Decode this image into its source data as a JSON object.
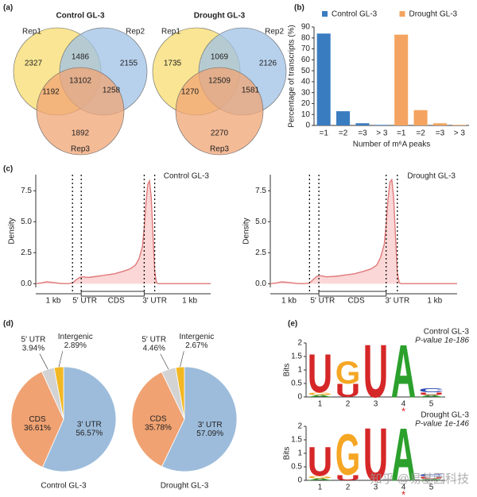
{
  "panels": [
    "(a)",
    "(b)",
    "(c)",
    "(d)",
    "(e)"
  ],
  "watermark": "知乎 @易基因科技",
  "chart_data": [
    {
      "type": "venn",
      "title": "Control GL-3",
      "sets": [
        "Rep1",
        "Rep2",
        "Rep3"
      ],
      "colors": [
        "#f7dc6f",
        "#9fc1e6",
        "#f0a474"
      ],
      "values": [
        2327,
        2155,
        1892,
        1486,
        1192,
        1258,
        13102
      ]
    },
    {
      "type": "venn",
      "title": "Drought GL-3",
      "sets": [
        "Rep1",
        "Rep2",
        "Rep3"
      ],
      "colors": [
        "#f7dc6f",
        "#9fc1e6",
        "#f0a474"
      ],
      "values": [
        1735,
        2126,
        2270,
        1069,
        1270,
        1581,
        12509
      ]
    },
    {
      "type": "bar",
      "categories": [
        "=1",
        "=2",
        "=3",
        "> 3"
      ],
      "x_label": "Number of m⁶A peaks",
      "y_label": "Percentage of transcripts (%)",
      "series": [
        {
          "name": "Control GL-3",
          "color": "#3a7cc0",
          "values": [
            84,
            13,
            2,
            0.5
          ]
        },
        {
          "name": "Drought GL-3",
          "color": "#f4a460",
          "values": [
            83,
            14,
            2,
            0.5
          ]
        }
      ],
      "ylim": [
        0,
        90
      ],
      "yticks": [
        0,
        10,
        20,
        30,
        40,
        50,
        60,
        70,
        80,
        90
      ],
      "legend": "top"
    },
    {
      "type": "line",
      "title": "Control GL-3",
      "y_label": "Density",
      "color": "#e07a7a",
      "fill": "#fbd7d7",
      "regions": [
        "1 kb",
        "5′ UTR",
        "CDS",
        "3′ UTR",
        "1 kb"
      ],
      "vlines": [
        21,
        26,
        62,
        68
      ],
      "x": [
        0,
        3,
        6,
        10,
        14,
        18,
        21,
        23,
        25,
        27,
        30,
        35,
        40,
        45,
        50,
        54,
        57,
        59,
        61,
        62,
        63,
        64,
        65,
        66,
        67,
        68,
        69,
        70,
        75,
        80,
        90,
        100
      ],
      "values": [
        0,
        0.05,
        0.15,
        0.1,
        0.02,
        0,
        0.05,
        0.3,
        0.5,
        0.55,
        0.5,
        0.6,
        0.7,
        0.8,
        1.0,
        1.2,
        1.5,
        2.0,
        3.0,
        4.5,
        6.5,
        8.0,
        8.3,
        7.0,
        4.0,
        1.0,
        0.1,
        0,
        0,
        0,
        0,
        0
      ],
      "xlim": [
        0,
        100
      ],
      "ylim": [
        -0.3,
        8.8
      ],
      "yticks": [
        {
          "value": 0,
          "label": "0.0"
        },
        2.5,
        {
          "value": 5,
          "label": "5.0"
        },
        7.5
      ]
    },
    {
      "type": "line",
      "title": "Drought GL-3",
      "y_label": "Density",
      "color": "#e07a7a",
      "fill": "#fbd7d7",
      "regions": [
        "1 kb",
        "5′ UTR",
        "CDS",
        "3′ UTR",
        "1 kb"
      ],
      "vlines": [
        21,
        26,
        62,
        68
      ],
      "x": [
        0,
        3,
        6,
        10,
        14,
        18,
        21,
        23,
        25,
        27,
        30,
        35,
        40,
        45,
        50,
        54,
        57,
        59,
        61,
        62,
        63,
        64,
        65,
        66,
        67,
        68,
        69,
        70,
        75,
        80,
        90,
        100
      ],
      "values": [
        0,
        0.05,
        0.15,
        0.1,
        0.02,
        0,
        0.05,
        0.35,
        0.6,
        0.65,
        0.55,
        0.6,
        0.7,
        0.8,
        1.0,
        1.2,
        1.5,
        2.1,
        3.2,
        4.8,
        6.8,
        8.2,
        8.4,
        7.0,
        3.8,
        0.9,
        0.1,
        0,
        0,
        0,
        0,
        0
      ],
      "xlim": [
        0,
        100
      ],
      "ylim": [
        -0.3,
        8.8
      ],
      "yticks": [
        {
          "value": 0,
          "label": "0.0"
        },
        2.5,
        {
          "value": 5,
          "label": "5.0"
        },
        7.5
      ]
    },
    {
      "type": "pie",
      "title": "Control GL-3",
      "categories": [
        "3′ UTR",
        "CDS",
        "5′ UTR",
        "Intergenic"
      ],
      "values": [
        56.57,
        36.61,
        3.94,
        2.89
      ],
      "value_labels": [
        "56.57%",
        "36.61%",
        "3.94%",
        "2.89%"
      ],
      "colors": [
        "#9dbcdb",
        "#f0a272",
        "#d3d3d3",
        "#f2b824"
      ]
    },
    {
      "type": "pie",
      "title": "Drought GL-3",
      "categories": [
        "3′ UTR",
        "CDS",
        "5′ UTR",
        "Intergenic"
      ],
      "values": [
        57.09,
        35.78,
        4.46,
        2.67
      ],
      "value_labels": [
        "57.09%",
        "35.78%",
        "4.46%",
        "2.67%"
      ],
      "colors": [
        "#9dbcdb",
        "#f0a272",
        "#d3d3d3",
        "#f2b824"
      ]
    },
    {
      "type": "logo",
      "title": "Control GL-3",
      "subtitle": "P-value 1e-186",
      "y_label": "Bits",
      "marker": "*",
      "xticks": [
        1,
        2,
        3,
        4,
        5
      ],
      "ylim": [
        0,
        2
      ],
      "yticks": [
        0,
        0.5,
        1,
        1.5,
        2
      ],
      "colors": {
        "U": "#d62728",
        "G": "#f5a623",
        "A": "#2ca02c",
        "C": "#2747b0"
      },
      "columns": [
        [
          {
            "letter": "A",
            "bits": 0.08
          },
          {
            "letter": "G",
            "bits": 0.1
          },
          {
            "letter": "U",
            "bits": 1.45
          }
        ],
        [
          {
            "letter": "U",
            "bits": 0.5
          },
          {
            "letter": "G",
            "bits": 0.85
          }
        ],
        [
          {
            "letter": "U",
            "bits": 2.0
          }
        ],
        [
          {
            "letter": "A",
            "bits": 2.0
          }
        ],
        [
          {
            "letter": "A",
            "bits": 0.08
          },
          {
            "letter": "U",
            "bits": 0.1
          },
          {
            "letter": "C",
            "bits": 0.15
          }
        ]
      ]
    },
    {
      "type": "logo",
      "title": "Drought GL-3",
      "subtitle": "P-value 1e-146",
      "y_label": "Bits",
      "marker": "*",
      "xticks": [
        1,
        2,
        3,
        4,
        5
      ],
      "ylim": [
        0,
        2
      ],
      "yticks": [
        0,
        0.5,
        1,
        1.5,
        2
      ],
      "colors": {
        "U": "#d62728",
        "G": "#f5a623",
        "A": "#2ca02c",
        "C": "#2747b0"
      },
      "columns": [
        [
          {
            "letter": "A",
            "bits": 0.08
          },
          {
            "letter": "G",
            "bits": 0.1
          },
          {
            "letter": "U",
            "bits": 1.1
          }
        ],
        [
          {
            "letter": "U",
            "bits": 0.2
          },
          {
            "letter": "G",
            "bits": 1.55
          }
        ],
        [
          {
            "letter": "U",
            "bits": 2.0
          }
        ],
        [
          {
            "letter": "A",
            "bits": 2.0
          }
        ],
        [
          {
            "letter": "A",
            "bits": 0.06
          },
          {
            "letter": "U",
            "bits": 0.08
          },
          {
            "letter": "C",
            "bits": 0.1
          }
        ]
      ]
    }
  ]
}
